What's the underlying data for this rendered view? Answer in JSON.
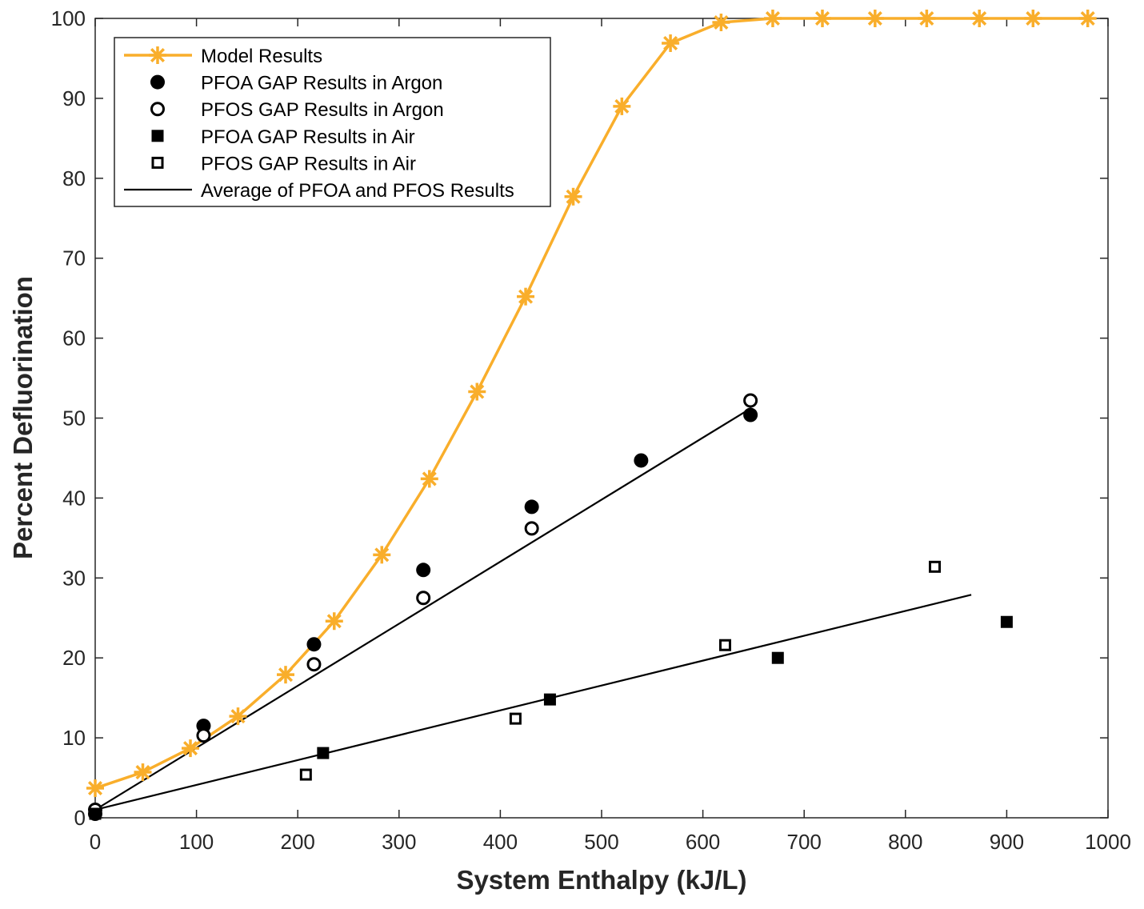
{
  "chart_data": {
    "type": "line",
    "title": "",
    "xlabel": "System Enthalpy (kJ/L)",
    "ylabel": "Percent Defluorination",
    "xlim": [
      0,
      1000
    ],
    "ylim": [
      0,
      100
    ],
    "xticks": [
      0,
      100,
      200,
      300,
      400,
      500,
      600,
      700,
      800,
      900,
      1000
    ],
    "yticks": [
      0,
      10,
      20,
      30,
      40,
      50,
      60,
      70,
      80,
      90,
      100
    ],
    "grid": false,
    "legend_position": "top-left",
    "colors": {
      "model": "#F9AE2B",
      "data": "#000000"
    },
    "series": [
      {
        "name": "Model Results",
        "marker": "star",
        "line": true,
        "x": [
          0,
          47,
          94,
          141,
          188,
          236,
          283,
          330,
          377,
          425,
          472,
          520,
          568,
          618,
          669,
          718,
          770,
          821,
          873,
          926,
          980
        ],
        "y": [
          3.7,
          5.7,
          8.7,
          12.7,
          17.9,
          24.6,
          32.9,
          42.4,
          53.3,
          65.2,
          77.7,
          89.0,
          96.9,
          99.5,
          100,
          100,
          100,
          100,
          100,
          100,
          100
        ]
      },
      {
        "name": "PFOA GAP Results in Argon",
        "marker": "filled-circle",
        "line": false,
        "x": [
          0,
          107,
          216,
          324,
          431,
          539,
          647
        ],
        "y": [
          0.5,
          11.5,
          21.7,
          31.0,
          38.9,
          44.7,
          50.4
        ]
      },
      {
        "name": "PFOS GAP Results in Argon",
        "marker": "open-circle",
        "line": false,
        "x": [
          0,
          107,
          216,
          324,
          431,
          647
        ],
        "y": [
          1.0,
          10.3,
          19.2,
          27.5,
          36.2,
          52.2
        ]
      },
      {
        "name": "PFOA GAP Results in Air",
        "marker": "filled-square",
        "line": false,
        "x": [
          0,
          225,
          449,
          674,
          900
        ],
        "y": [
          0.5,
          8.1,
          14.8,
          20.0,
          24.5
        ]
      },
      {
        "name": "PFOS GAP Results in Air",
        "marker": "open-square",
        "line": false,
        "x": [
          208,
          415,
          622,
          829
        ],
        "y": [
          5.4,
          12.4,
          21.6,
          31.4
        ]
      },
      {
        "name": "Average of PFOA and PFOS Results",
        "marker": "none",
        "line": true,
        "segments": [
          {
            "x": [
              0,
              647
            ],
            "y": [
              1.0,
              51.2
            ]
          },
          {
            "x": [
              0,
              865
            ],
            "y": [
              1.0,
              27.9
            ]
          }
        ]
      }
    ]
  }
}
